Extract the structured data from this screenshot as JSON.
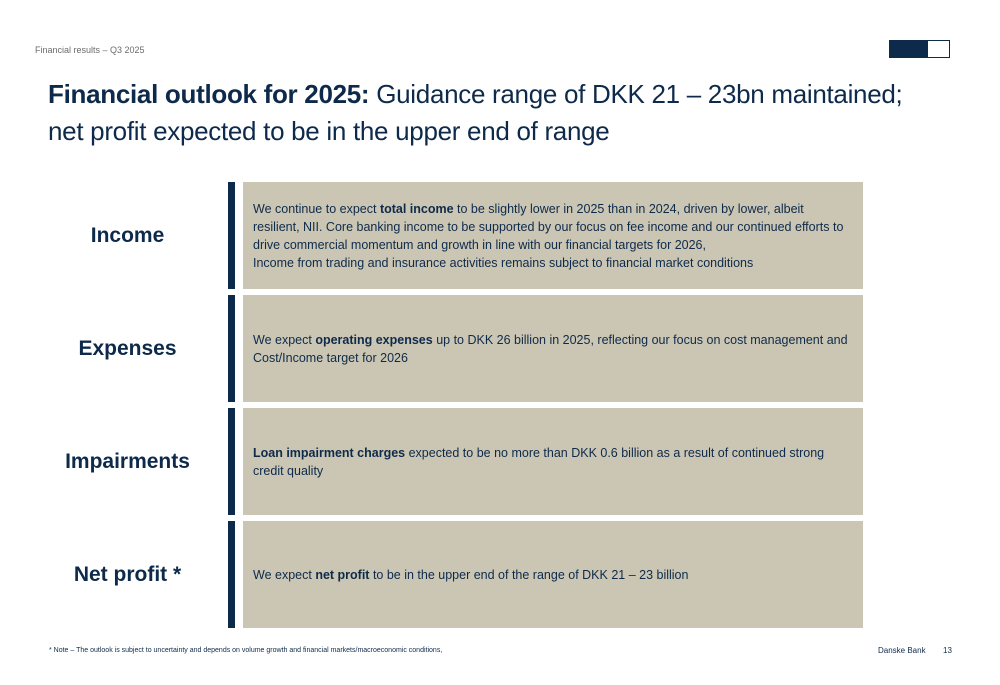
{
  "header": {
    "section": "Financial results – Q3 2025"
  },
  "title": {
    "bold": "Financial outlook for 2025:",
    "line1_rest": " Guidance range of DKK 21 – 23bn maintained;",
    "line2": "net profit expected to be in the upper end of range"
  },
  "rows": [
    {
      "label": "Income",
      "parts": [
        {
          "t": "We continue to expect "
        },
        {
          "b": "total income"
        },
        {
          "t": " to be slightly lower in 2025 than in 2024, driven by lower, albeit resilient, NII. Core banking income to be supported by our focus on fee income and our continued efforts to drive commercial momentum and growth in line with our financial targets for 2026,"
        },
        {
          "br": true
        },
        {
          "t": "Income from trading and insurance activities remains subject to financial market conditions"
        }
      ]
    },
    {
      "label": "Expenses",
      "parts": [
        {
          "t": "We expect "
        },
        {
          "b": "operating expenses"
        },
        {
          "t": " up to DKK 26 billion in 2025, reflecting our focus on cost management and Cost/Income target for 2026"
        }
      ]
    },
    {
      "label": "Impairments",
      "parts": [
        {
          "b": "Loan impairment charges"
        },
        {
          "t": " expected to be no more than DKK 0.6 billion as a result of continued strong credit quality"
        }
      ]
    },
    {
      "label": "Net profit *",
      "parts": [
        {
          "t": "We expect "
        },
        {
          "b": "net profit"
        },
        {
          "t": " to be in the upper end of the range of DKK 21 – 23 billion"
        }
      ]
    }
  ],
  "footer": {
    "note": "* Note – The outlook is subject to uncertainty and depends on volume growth and financial markets/macroeconomic conditions,",
    "brand": "Danske Bank",
    "page": "13"
  },
  "colors": {
    "navy": "#0e2a4b",
    "box": "#cbc6b3"
  }
}
